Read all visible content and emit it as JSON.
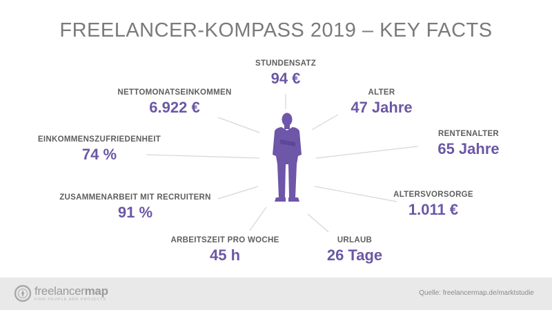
{
  "title": "FREELANCER-KOMPASS 2019 – KEY FACTS",
  "facts": {
    "stundensatz": {
      "label": "STUNDENSATZ",
      "value": "94 €"
    },
    "alter": {
      "label": "ALTER",
      "value": "47 Jahre"
    },
    "rentenalter": {
      "label": "RENTENALTER",
      "value": "65 Jahre"
    },
    "altersvorsorge": {
      "label": "ALTERSVORSORGE",
      "value": "1.011 €"
    },
    "urlaub": {
      "label": "URLAUB",
      "value": "26 Tage"
    },
    "arbeitszeit": {
      "label": "ARBEITSZEIT  PRO WOCHE",
      "value": "45 h"
    },
    "recruiter": {
      "label": "ZUSAMMENARBEIT  MIT RECRUITERN",
      "value": "91 %"
    },
    "zufriedenheit": {
      "label": "EINKOMMENSZUFRIEDENHEIT",
      "value": "74 %"
    },
    "einkommen": {
      "label": "NETTOMONATSEINKOMMEN",
      "value": "6.922 €"
    }
  },
  "colors": {
    "accent": "#6b57a5",
    "title": "#7a7a7a",
    "label": "#5e5e5e",
    "figure": "#6e56a8",
    "footer_bg": "#e9e9e9"
  },
  "footer": {
    "logo_name_light": "freelancer",
    "logo_name_bold": "map",
    "logo_tagline": "FIND PEOPLE AND PROJECTS",
    "source": "Quelle: freelancermap.de/marktstudie"
  },
  "icons": {
    "logo": "compass-logo-icon",
    "figure": "businessman-silhouette-icon"
  }
}
